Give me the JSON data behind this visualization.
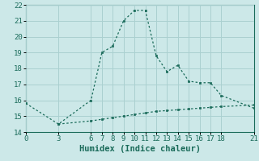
{
  "xlabel": "Humidex (Indice chaleur)",
  "ylabel": "",
  "background_color": "#cce8e8",
  "grid_color": "#aad0d0",
  "line_color": "#1a6b5a",
  "xlim": [
    0,
    21
  ],
  "ylim": [
    14,
    22
  ],
  "xticks": [
    0,
    3,
    6,
    7,
    8,
    9,
    10,
    11,
    12,
    13,
    14,
    15,
    16,
    17,
    18,
    21
  ],
  "yticks": [
    14,
    15,
    16,
    17,
    18,
    19,
    20,
    21,
    22
  ],
  "line1_x": [
    0,
    3,
    6,
    7,
    8,
    9,
    10,
    11,
    12,
    13,
    14,
    15,
    16,
    17,
    18,
    21
  ],
  "line1_y": [
    15.8,
    14.5,
    16.0,
    19.0,
    19.4,
    21.0,
    21.65,
    21.65,
    18.8,
    17.8,
    18.2,
    17.2,
    17.1,
    17.1,
    16.3,
    15.5
  ],
  "line2_x": [
    3,
    6,
    7,
    8,
    9,
    10,
    11,
    12,
    13,
    14,
    15,
    16,
    17,
    18,
    21
  ],
  "line2_y": [
    14.5,
    14.7,
    14.8,
    14.9,
    15.0,
    15.1,
    15.2,
    15.3,
    15.35,
    15.4,
    15.45,
    15.5,
    15.55,
    15.6,
    15.7
  ],
  "axis_fontsize": 7,
  "tick_fontsize": 6.5,
  "xlabel_fontsize": 7.5
}
